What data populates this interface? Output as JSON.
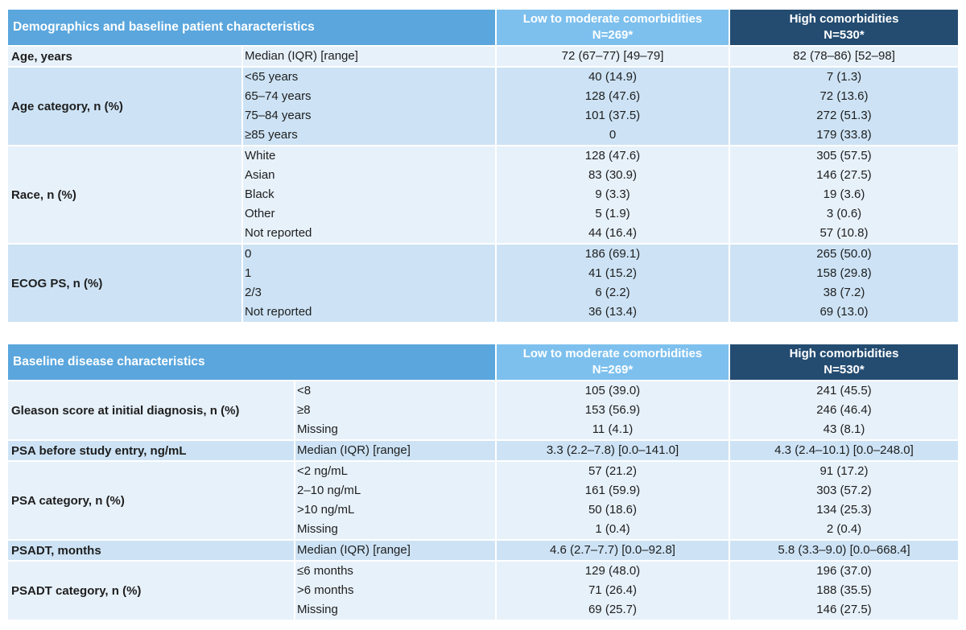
{
  "table1": {
    "header": [
      "Demographics and baseline patient characteristics",
      [
        "Low to moderate comorbidities",
        "N=269*"
      ],
      [
        "High comorbidities",
        "N=530*"
      ]
    ],
    "groups": [
      {
        "label": "Age, years",
        "rows": [
          [
            "Median (IQR) [range]",
            "72 (67–77) [49–79]",
            "82 (78–86) [52–98]"
          ]
        ]
      },
      {
        "label": "Age category, n (%)",
        "rows": [
          [
            "<65 years",
            "40 (14.9)",
            "7 (1.3)"
          ],
          [
            "65–74 years",
            "128 (47.6)",
            "72 (13.6)"
          ],
          [
            "75–84 years",
            "101 (37.5)",
            "272 (51.3)"
          ],
          [
            "≥85 years",
            "0",
            "179 (33.8)"
          ]
        ]
      },
      {
        "label": "Race, n (%)",
        "rows": [
          [
            "White",
            "128 (47.6)",
            "305 (57.5)"
          ],
          [
            "Asian",
            "83 (30.9)",
            "146 (27.5)"
          ],
          [
            "Black",
            "9 (3.3)",
            "19 (3.6)"
          ],
          [
            "Other",
            "5 (1.9)",
            "3 (0.6)"
          ],
          [
            "Not reported",
            "44 (16.4)",
            "57 (10.8)"
          ]
        ]
      },
      {
        "label": "ECOG PS, n (%)",
        "rows": [
          [
            "0",
            "186 (69.1)",
            "265 (50.0)"
          ],
          [
            "1",
            "41 (15.2)",
            "158 (29.8)"
          ],
          [
            "2/3",
            "6 (2.2)",
            "38 (7.2)"
          ],
          [
            "Not reported",
            "36 (13.4)",
            "69 (13.0)"
          ]
        ]
      }
    ]
  },
  "table2": {
    "header": [
      "Baseline disease characteristics",
      [
        "Low to moderate comorbidities",
        "N=269*"
      ],
      [
        "High comorbidities",
        "N=530*"
      ]
    ],
    "groups": [
      {
        "label": "Gleason score at initial diagnosis, n (%)",
        "rows": [
          [
            "<8",
            "105 (39.0)",
            "241 (45.5)"
          ],
          [
            "≥8",
            "153 (56.9)",
            "246 (46.4)"
          ],
          [
            "Missing",
            "11 (4.1)",
            "43 (8.1)"
          ]
        ]
      },
      {
        "label": "PSA before study entry, ng/mL",
        "rows": [
          [
            "Median (IQR) [range]",
            "3.3 (2.2–7.8) [0.0–141.0]",
            "4.3 (2.4–10.1) [0.0–248.0]"
          ]
        ]
      },
      {
        "label": "PSA category, n (%)",
        "rows": [
          [
            "<2 ng/mL",
            "57 (21.2)",
            "91 (17.2)"
          ],
          [
            "2–10 ng/mL",
            "161 (59.9)",
            "303 (57.2)"
          ],
          [
            ">10 ng/mL",
            "50 (18.6)",
            "134 (25.3)"
          ],
          [
            "Missing",
            "1 (0.4)",
            "2 (0.4)"
          ]
        ]
      },
      {
        "label": "PSADT, months",
        "rows": [
          [
            "Median (IQR) [range]",
            "4.6 (2.7–7.7) [0.0–92.8]",
            "5.8 (3.3–9.0) [0.0–668.4]"
          ]
        ]
      },
      {
        "label": "PSADT category, n (%)",
        "rows": [
          [
            "≤6 months",
            "129 (48.0)",
            "196 (37.0)"
          ],
          [
            ">6 months",
            "71 (26.4)",
            "188 (35.5)"
          ],
          [
            "Missing",
            "69 (25.7)",
            "146 (27.5)"
          ]
        ]
      }
    ]
  }
}
